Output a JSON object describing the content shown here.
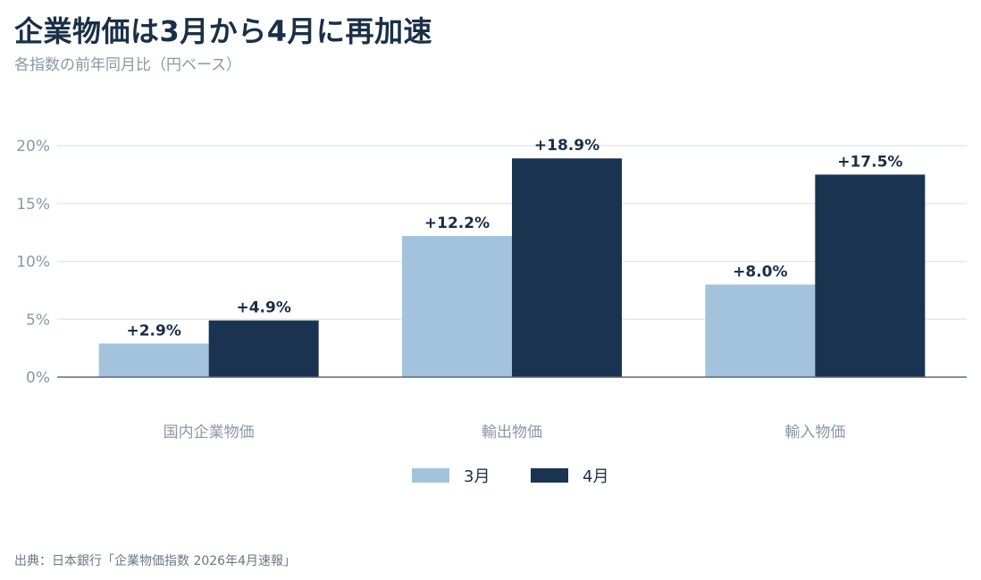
{
  "title": "企業物価は3月から4月に再加速",
  "subtitle": "各指数の前年同月比（円ベース）",
  "source": "出典：日本銀行「企業物価指数 2026年4月速報」",
  "colors": {
    "series_1": "#a3c3dd",
    "series_2": "#1a3350",
    "axis": "#5a6878",
    "grid": "#e6e9ed",
    "tick_text": "#8a97a6",
    "label_text": "#1a2f48"
  },
  "chart_data": {
    "type": "bar",
    "categories": [
      "国内企業物価",
      "輸出物価",
      "輸入物価"
    ],
    "series": [
      {
        "name": "3月",
        "values": [
          2.9,
          12.2,
          8.0
        ],
        "labels": [
          "+2.9%",
          "+12.2%",
          "+8.0%"
        ]
      },
      {
        "name": "4月",
        "values": [
          4.9,
          18.9,
          17.5
        ],
        "labels": [
          "+4.9%",
          "+18.9%",
          "+17.5%"
        ]
      }
    ],
    "yticks": [
      0,
      5,
      10,
      15,
      20
    ],
    "ytick_labels": [
      "0%",
      "5%",
      "10%",
      "15%",
      "20%"
    ],
    "ylim": [
      0,
      20
    ],
    "grid": true,
    "legend": "bottom-center"
  }
}
